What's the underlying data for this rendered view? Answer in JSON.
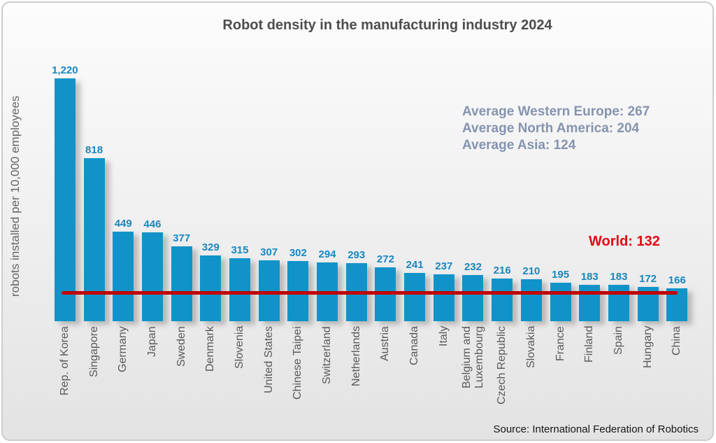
{
  "title": "Robot density in the manufacturing industry 2024",
  "ylabel": "robots installed per 10,000 employees",
  "source": "Source: International Federation of Robotics",
  "annotations": {
    "averages": [
      "Average Western Europe: 267",
      "Average North America: 204",
      "Average Asia: 124"
    ],
    "world_label": "World: 132"
  },
  "colors": {
    "bar": "#1193c9",
    "value_label": "#1787c0",
    "world_line": "#c00000",
    "world_text": "#e30613",
    "averages_text": "#8494af",
    "title_text": "#4d4d4d",
    "axis_text": "#595959"
  },
  "chart_data": {
    "type": "bar",
    "title": "Robot density in the manufacturing industry 2024",
    "xlabel": "",
    "ylabel": "robots installed per 10,000 employees",
    "ylim": [
      0,
      1250
    ],
    "grid": false,
    "legend": false,
    "categories": [
      "Rep. of Korea",
      "Singapore",
      "Germany",
      "Japan",
      "Sweden",
      "Denmark",
      "Slovenia",
      "United States",
      "Chinese Taipei",
      "Switzerland",
      "Netherlands",
      "Austria",
      "Canada",
      "Italy",
      "Belgium and\nLuxembourg",
      "Czech Republic",
      "Slovakia",
      "France",
      "Finland",
      "Spain",
      "Hungary",
      "China"
    ],
    "values": [
      1220,
      818,
      449,
      446,
      377,
      329,
      315,
      307,
      302,
      294,
      293,
      272,
      241,
      237,
      232,
      216,
      210,
      195,
      183,
      183,
      172,
      166
    ],
    "value_labels": [
      "1,220",
      "818",
      "449",
      "446",
      "377",
      "329",
      "315",
      "307",
      "302",
      "294",
      "293",
      "272",
      "241",
      "237",
      "232",
      "216",
      "210",
      "195",
      "183",
      "183",
      "172",
      "166"
    ],
    "reference_line": {
      "value": 132,
      "label": "World: 132"
    },
    "annotations": [
      "Average Western Europe: 267",
      "Average North America: 204",
      "Average Asia: 124"
    ]
  }
}
